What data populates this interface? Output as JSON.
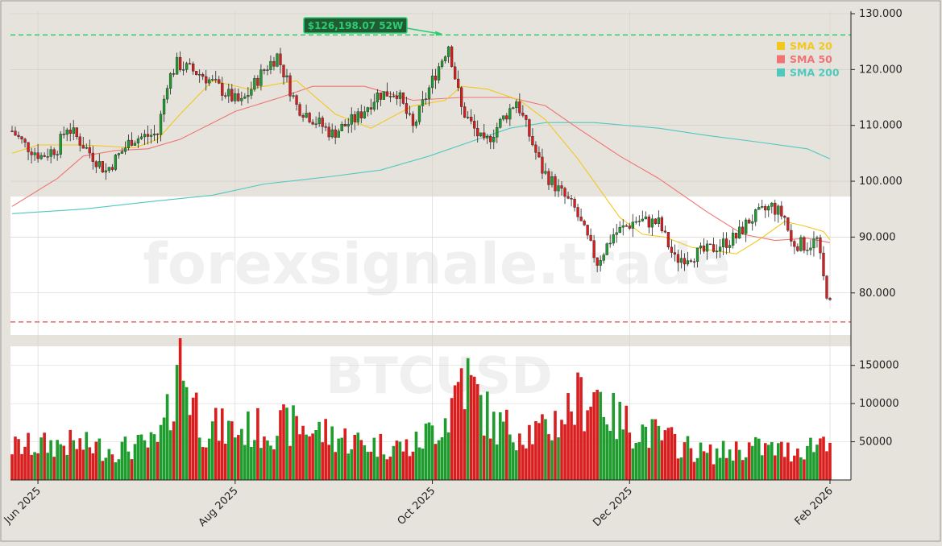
{
  "chart_data": {
    "type": "candlestick",
    "symbol": "BTCUSD",
    "watermark": "forexsignale.trade",
    "price_axis": {
      "ticks": [
        80000,
        90000,
        100000,
        110000,
        120000,
        130000
      ],
      "tick_labels": [
        "80.000",
        "90.000",
        "100.000",
        "110.000",
        "120.000",
        "130.000"
      ]
    },
    "volume_axis": {
      "ticks": [
        50000,
        100000,
        150000
      ],
      "tick_labels": [
        "50000",
        "100000",
        "150000"
      ],
      "ylim": [
        0,
        175000
      ]
    },
    "x_axis": {
      "tick_labels": [
        "Jun 2025",
        "Aug 2025",
        "Oct 2025",
        "Dec 2025",
        "Feb 2026"
      ],
      "tick_dates": [
        "2025-06-01",
        "2025-08-01",
        "2025-10-01",
        "2025-12-01",
        "2026-02-01"
      ],
      "range": [
        "2025-05-24",
        "2026-02-01"
      ]
    },
    "high_52w": {
      "value": 126198.07,
      "label": "$126,198.07 52W",
      "date": "2025-10-06",
      "line_color": "#2ecc71"
    },
    "support_line": {
      "value": 74800,
      "line_color": "#e05555"
    },
    "legend": [
      {
        "name": "SMA 20",
        "color": "#f2c81e"
      },
      {
        "name": "SMA 50",
        "color": "#f07474"
      },
      {
        "name": "SMA 200",
        "color": "#4fc9be"
      }
    ],
    "colors": {
      "up": "#1e9c2e",
      "down": "#d81e1e",
      "up_volume": "#1e9c2e",
      "down_volume": "#d81e1e"
    },
    "price_anchors": [
      [
        "2025-05-24",
        109000
      ],
      [
        "2025-05-28",
        106500
      ],
      [
        "2025-06-02",
        104500
      ],
      [
        "2025-06-07",
        106000
      ],
      [
        "2025-06-10",
        109800
      ],
      [
        "2025-06-15",
        106500
      ],
      [
        "2025-06-22",
        101800
      ],
      [
        "2025-06-30",
        107500
      ],
      [
        "2025-07-08",
        108500
      ],
      [
        "2025-07-11",
        117800
      ],
      [
        "2025-07-14",
        121000
      ],
      [
        "2025-07-22",
        119000
      ],
      [
        "2025-08-01",
        114500
      ],
      [
        "2025-08-03",
        114000
      ],
      [
        "2025-08-10",
        120000
      ],
      [
        "2025-08-14",
        122500
      ],
      [
        "2025-08-20",
        113500
      ],
      [
        "2025-08-31",
        108500
      ],
      [
        "2025-09-08",
        111500
      ],
      [
        "2025-09-14",
        115500
      ],
      [
        "2025-09-20",
        116000
      ],
      [
        "2025-09-25",
        109500
      ],
      [
        "2025-10-01",
        118000
      ],
      [
        "2025-10-06",
        124500
      ],
      [
        "2025-10-10",
        113000
      ],
      [
        "2025-10-17",
        106500
      ],
      [
        "2025-10-27",
        114500
      ],
      [
        "2025-11-04",
        102000
      ],
      [
        "2025-11-14",
        95000
      ],
      [
        "2025-11-21",
        85500
      ],
      [
        "2025-11-26",
        90500
      ],
      [
        "2025-12-03",
        93000
      ],
      [
        "2025-12-10",
        92500
      ],
      [
        "2025-12-15",
        86000
      ],
      [
        "2025-12-25",
        87500
      ],
      [
        "2026-01-03",
        90000
      ],
      [
        "2026-01-07",
        93000
      ],
      [
        "2026-01-14",
        95500
      ],
      [
        "2026-01-18",
        93500
      ],
      [
        "2026-01-20",
        89000
      ],
      [
        "2026-01-25",
        88500
      ],
      [
        "2026-01-28",
        89500
      ],
      [
        "2026-01-30",
        82500
      ],
      [
        "2026-02-01",
        77800
      ]
    ],
    "sma20": [
      [
        "2025-05-24",
        105000
      ],
      [
        "2025-06-01",
        106500
      ],
      [
        "2025-06-15",
        106500
      ],
      [
        "2025-07-01",
        106000
      ],
      [
        "2025-07-08",
        107500
      ],
      [
        "2025-07-15",
        112000
      ],
      [
        "2025-07-25",
        118000
      ],
      [
        "2025-08-05",
        116500
      ],
      [
        "2025-08-20",
        118000
      ],
      [
        "2025-09-01",
        112000
      ],
      [
        "2025-09-12",
        109500
      ],
      [
        "2025-09-25",
        113500
      ],
      [
        "2025-10-05",
        114500
      ],
      [
        "2025-10-10",
        117000
      ],
      [
        "2025-10-18",
        116500
      ],
      [
        "2025-10-28",
        114500
      ],
      [
        "2025-11-05",
        111000
      ],
      [
        "2025-11-15",
        104000
      ],
      [
        "2025-11-28",
        93500
      ],
      [
        "2025-12-05",
        90500
      ],
      [
        "2025-12-12",
        90000
      ],
      [
        "2025-12-20",
        88200
      ],
      [
        "2026-01-03",
        87000
      ],
      [
        "2026-01-10",
        89500
      ],
      [
        "2026-01-18",
        92800
      ],
      [
        "2026-01-24",
        92000
      ],
      [
        "2026-01-30",
        91000
      ],
      [
        "2026-02-01",
        89500
      ]
    ],
    "sma50": [
      [
        "2025-05-24",
        95500
      ],
      [
        "2025-06-07",
        100500
      ],
      [
        "2025-06-15",
        104500
      ],
      [
        "2025-06-25",
        105500
      ],
      [
        "2025-07-05",
        105800
      ],
      [
        "2025-07-15",
        107500
      ],
      [
        "2025-08-01",
        112500
      ],
      [
        "2025-08-15",
        115000
      ],
      [
        "2025-08-25",
        117000
      ],
      [
        "2025-09-10",
        117000
      ],
      [
        "2025-09-25",
        114500
      ],
      [
        "2025-10-10",
        115000
      ],
      [
        "2025-10-25",
        115000
      ],
      [
        "2025-11-05",
        113500
      ],
      [
        "2025-11-15",
        109500
      ],
      [
        "2025-11-28",
        104500
      ],
      [
        "2025-12-10",
        100500
      ],
      [
        "2025-12-25",
        94500
      ],
      [
        "2026-01-05",
        90500
      ],
      [
        "2026-01-15",
        89400
      ],
      [
        "2026-01-25",
        89800
      ],
      [
        "2026-02-01",
        89000
      ]
    ],
    "sma200": [
      [
        "2025-05-24",
        94200
      ],
      [
        "2025-06-15",
        95000
      ],
      [
        "2025-07-05",
        96300
      ],
      [
        "2025-07-25",
        97500
      ],
      [
        "2025-08-10",
        99500
      ],
      [
        "2025-08-30",
        100800
      ],
      [
        "2025-09-15",
        102000
      ],
      [
        "2025-09-30",
        104500
      ],
      [
        "2025-10-15",
        107500
      ],
      [
        "2025-10-25",
        109500
      ],
      [
        "2025-11-05",
        110500
      ],
      [
        "2025-11-20",
        110500
      ],
      [
        "2025-12-10",
        109500
      ],
      [
        "2025-12-25",
        108200
      ],
      [
        "2026-01-10",
        107000
      ],
      [
        "2026-01-25",
        105800
      ],
      [
        "2026-02-01",
        104000
      ]
    ],
    "volume_anchors": [
      [
        "2025-05-24",
        45000
      ],
      [
        "2025-06-10",
        50000
      ],
      [
        "2025-06-25",
        42000
      ],
      [
        "2025-07-08",
        50000
      ],
      [
        "2025-07-12",
        95000
      ],
      [
        "2025-07-14",
        175000
      ],
      [
        "2025-07-22",
        75000
      ],
      [
        "2025-08-01",
        68000
      ],
      [
        "2025-08-20",
        75000
      ],
      [
        "2025-09-10",
        50000
      ],
      [
        "2025-09-25",
        45000
      ],
      [
        "2025-10-06",
        90000
      ],
      [
        "2025-10-10",
        150000
      ],
      [
        "2025-10-20",
        75000
      ],
      [
        "2025-11-04",
        65000
      ],
      [
        "2025-11-14",
        105000
      ],
      [
        "2025-11-21",
        125000
      ],
      [
        "2025-11-26",
        85000
      ],
      [
        "2025-12-10",
        60000
      ],
      [
        "2025-12-25",
        35000
      ],
      [
        "2026-01-07",
        45000
      ],
      [
        "2026-01-20",
        40000
      ],
      [
        "2026-01-28",
        50000
      ],
      [
        "2026-02-01",
        68000
      ]
    ]
  }
}
